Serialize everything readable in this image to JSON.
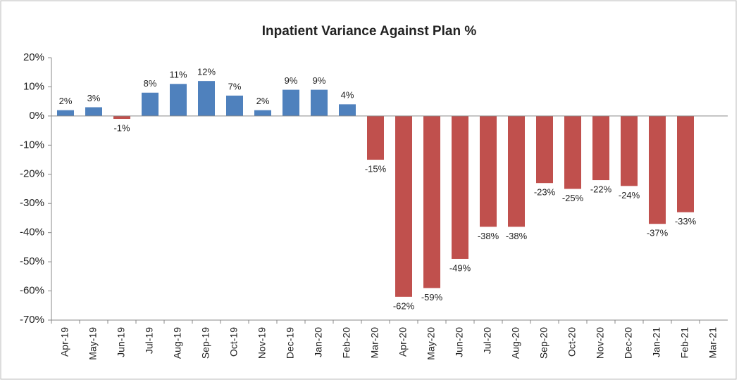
{
  "chart_data": {
    "type": "bar",
    "title": "Inpatient Variance Against Plan %",
    "categories": [
      "Apr-19",
      "May-19",
      "Jun-19",
      "Jul-19",
      "Aug-19",
      "Sep-19",
      "Oct-19",
      "Nov-19",
      "Dec-19",
      "Jan-20",
      "Feb-20",
      "Mar-20",
      "Apr-20",
      "May-20",
      "Jun-20",
      "Jul-20",
      "Aug-20",
      "Sep-20",
      "Oct-20",
      "Nov-20",
      "Dec-20",
      "Jan-21",
      "Feb-21",
      "Mar-21"
    ],
    "values": [
      2,
      3,
      -1,
      8,
      11,
      12,
      7,
      2,
      9,
      9,
      4,
      -15,
      -62,
      -59,
      -49,
      -38,
      -38,
      -23,
      -25,
      -22,
      -24,
      -37,
      -33,
      null
    ],
    "value_labels": [
      "2%",
      "3%",
      "-1%",
      "8%",
      "11%",
      "12%",
      "7%",
      "2%",
      "9%",
      "9%",
      "4%",
      "-15%",
      "-62%",
      "-59%",
      "-49%",
      "-38%",
      "-38%",
      "-23%",
      "-25%",
      "-22%",
      "-24%",
      "-37%",
      "-33%",
      null
    ],
    "colors": [
      "#4f81bd",
      "#4f81bd",
      "#c0504d",
      "#4f81bd",
      "#4f81bd",
      "#4f81bd",
      "#4f81bd",
      "#4f81bd",
      "#4f81bd",
      "#4f81bd",
      "#4f81bd",
      "#c0504d",
      "#c0504d",
      "#c0504d",
      "#c0504d",
      "#c0504d",
      "#c0504d",
      "#c0504d",
      "#c0504d",
      "#c0504d",
      "#c0504d",
      "#c0504d",
      "#c0504d",
      "#c0504d"
    ],
    "ylim": [
      -70,
      20
    ],
    "yticks": [
      {
        "value": -70,
        "label": "-70%"
      },
      {
        "value": -60,
        "label": "-60%"
      },
      {
        "value": -50,
        "label": "-50%"
      },
      {
        "value": -40,
        "label": "-40%"
      },
      {
        "value": -30,
        "label": "-30%"
      },
      {
        "value": -20,
        "label": "-20%"
      },
      {
        "value": -10,
        "label": "-10%"
      },
      {
        "value": 0,
        "label": "0%"
      },
      {
        "value": 10,
        "label": "10%"
      },
      {
        "value": 20,
        "label": "20%"
      }
    ]
  }
}
